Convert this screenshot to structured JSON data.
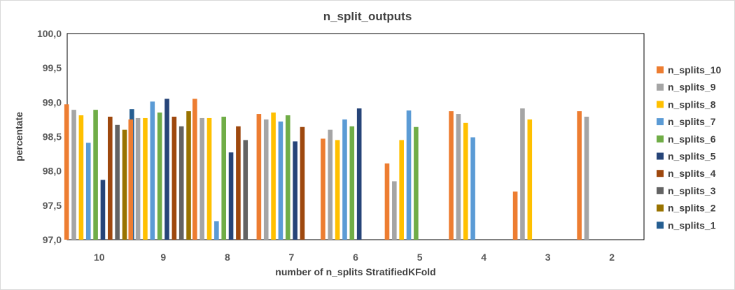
{
  "chart_data": {
    "type": "bar",
    "title": "n_split_outputs",
    "xlabel": "number of n_splits StratifiedKFold",
    "ylabel": "percentate",
    "ylim": [
      97.0,
      100.0
    ],
    "ytick_step": 0.5,
    "ytick_labels": [
      "97,0",
      "97,5",
      "98,0",
      "98,5",
      "99,0",
      "99,5",
      "100,0"
    ],
    "categories": [
      "10",
      "9",
      "8",
      "7",
      "6",
      "5",
      "4",
      "3",
      "2"
    ],
    "grid": false,
    "legend_position": "right",
    "series": [
      {
        "name": "n_splits_10",
        "color": "#ED7D31",
        "values": [
          98.97,
          98.75,
          99.05,
          98.83,
          98.47,
          98.11,
          98.87,
          97.7,
          98.87
        ]
      },
      {
        "name": "n_splits_9",
        "color": "#A5A5A5",
        "values": [
          98.89,
          98.77,
          98.77,
          98.75,
          98.6,
          97.85,
          98.83,
          98.91,
          98.79
        ]
      },
      {
        "name": "n_splits_8",
        "color": "#FFC000",
        "values": [
          98.81,
          98.77,
          98.77,
          98.85,
          98.45,
          98.45,
          98.7,
          98.75,
          null
        ]
      },
      {
        "name": "n_splits_7",
        "color": "#5B9BD5",
        "values": [
          98.41,
          99.01,
          97.27,
          98.72,
          98.75,
          98.88,
          98.49,
          null,
          null
        ]
      },
      {
        "name": "n_splits_6",
        "color": "#70AD47",
        "values": [
          98.89,
          98.85,
          98.79,
          98.81,
          98.65,
          98.64,
          null,
          null,
          null
        ]
      },
      {
        "name": "n_splits_5",
        "color": "#264478",
        "values": [
          97.87,
          99.05,
          98.27,
          98.43,
          98.91,
          null,
          null,
          null,
          null
        ]
      },
      {
        "name": "n_splits_4",
        "color": "#9E480E",
        "values": [
          98.79,
          98.79,
          98.65,
          98.64,
          null,
          null,
          null,
          null,
          null
        ]
      },
      {
        "name": "n_splits_3",
        "color": "#636363",
        "values": [
          98.67,
          98.65,
          98.45,
          null,
          null,
          null,
          null,
          null,
          null
        ]
      },
      {
        "name": "n_splits_2",
        "color": "#997300",
        "values": [
          98.6,
          98.87,
          null,
          null,
          null,
          null,
          null,
          null,
          null
        ]
      },
      {
        "name": "n_splits_1",
        "color": "#255E91",
        "values": [
          98.9,
          null,
          null,
          null,
          null,
          null,
          null,
          null,
          null
        ]
      }
    ]
  }
}
